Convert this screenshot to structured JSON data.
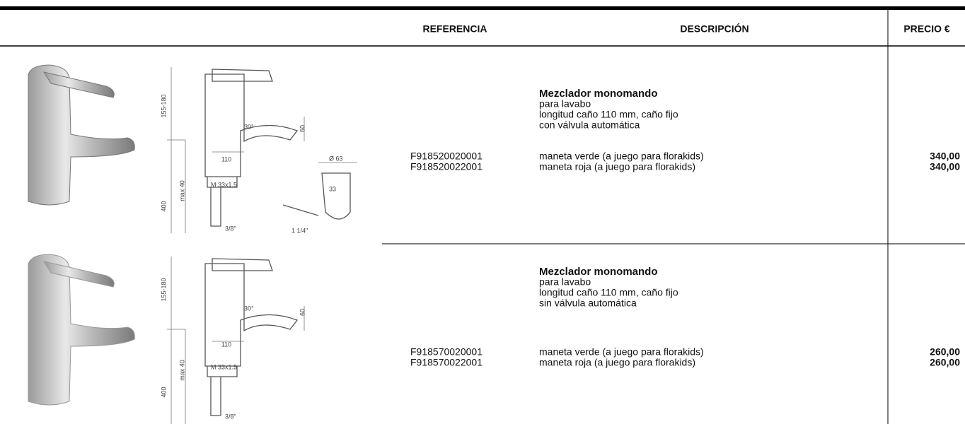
{
  "header": {
    "columns": [
      "REFERENCIA",
      "DESCRIPCIÓN",
      "PRECIO €"
    ]
  },
  "products": [
    {
      "title": "Mezclador monomando",
      "details": [
        "para lavabo",
        "longitud caño 110 mm, caño fijo",
        "con válvula automática"
      ],
      "variants": [
        {
          "reference": "F918520020001",
          "description": "maneta verde (a juego para florakids)",
          "price": "340,00"
        },
        {
          "reference": "F918520022001",
          "description": "maneta roja (a juego para florakids)",
          "price": "340,00"
        }
      ],
      "drawing_labels": [
        "155-180",
        "30°",
        "60",
        "110",
        "max 40",
        "M 33x1.5",
        "400",
        "3/8\"",
        "Ø 63",
        "33",
        "1 1/4\""
      ]
    },
    {
      "title": "Mezclador monomando",
      "details": [
        "para lavabo",
        "longitud caño 110 mm, caño fijo",
        "sin válvula automática"
      ],
      "variants": [
        {
          "reference": "F918570020001",
          "description": "maneta verde (a juego para florakids)",
          "price": "260,00"
        },
        {
          "reference": "F918570022001",
          "description": "maneta roja (a juego para florakids)",
          "price": "260,00"
        }
      ],
      "drawing_labels": [
        "155-180",
        "30°",
        "60",
        "110",
        "max 40",
        "M 33x1.5",
        "400",
        "3/8\""
      ]
    }
  ]
}
